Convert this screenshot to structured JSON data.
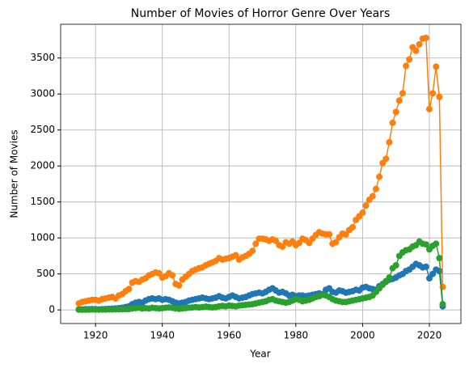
{
  "chart_data": {
    "type": "line",
    "title": "Number of Movies of Horror Genre Over Years",
    "xlabel": "Year",
    "ylabel": "Number of Movies",
    "x": [
      1915,
      1916,
      1917,
      1918,
      1919,
      1920,
      1921,
      1922,
      1923,
      1924,
      1925,
      1926,
      1927,
      1928,
      1929,
      1930,
      1931,
      1932,
      1933,
      1934,
      1935,
      1936,
      1937,
      1938,
      1939,
      1940,
      1941,
      1942,
      1943,
      1944,
      1945,
      1946,
      1947,
      1948,
      1949,
      1950,
      1951,
      1952,
      1953,
      1954,
      1955,
      1956,
      1957,
      1958,
      1959,
      1960,
      1961,
      1962,
      1963,
      1964,
      1965,
      1966,
      1967,
      1968,
      1969,
      1970,
      1971,
      1972,
      1973,
      1974,
      1975,
      1976,
      1977,
      1978,
      1979,
      1980,
      1981,
      1982,
      1983,
      1984,
      1985,
      1986,
      1987,
      1988,
      1989,
      1990,
      1991,
      1992,
      1993,
      1994,
      1995,
      1996,
      1997,
      1998,
      1999,
      2000,
      2001,
      2002,
      2003,
      2004,
      2005,
      2006,
      2007,
      2008,
      2009,
      2010,
      2011,
      2012,
      2013,
      2014,
      2015,
      2016,
      2017,
      2018,
      2019,
      2020,
      2021,
      2022,
      2023,
      2024
    ],
    "series": [
      {
        "color": "#1f77b4",
        "values": [
          5,
          8,
          10,
          10,
          12,
          10,
          8,
          10,
          12,
          15,
          18,
          20,
          25,
          30,
          40,
          50,
          80,
          100,
          110,
          100,
          130,
          150,
          160,
          150,
          160,
          140,
          150,
          140,
          120,
          100,
          90,
          100,
          110,
          130,
          140,
          150,
          160,
          170,
          160,
          150,
          160,
          170,
          190,
          170,
          160,
          180,
          200,
          180,
          160,
          170,
          180,
          200,
          220,
          230,
          240,
          230,
          250,
          280,
          300,
          270,
          240,
          250,
          230,
          200,
          210,
          190,
          200,
          200,
          190,
          200,
          210,
          220,
          230,
          220,
          280,
          300,
          250,
          240,
          270,
          260,
          240,
          250,
          260,
          280,
          270,
          310,
          320,
          300,
          290,
          280,
          330,
          360,
          390,
          420,
          430,
          450,
          480,
          500,
          540,
          560,
          600,
          640,
          620,
          590,
          600,
          440,
          500,
          560,
          540,
          50
        ]
      },
      {
        "color": "#ff7f0e",
        "values": [
          90,
          110,
          120,
          130,
          140,
          140,
          130,
          150,
          160,
          170,
          180,
          160,
          200,
          220,
          260,
          290,
          380,
          400,
          390,
          420,
          440,
          480,
          500,
          520,
          510,
          450,
          470,
          510,
          480,
          360,
          340,
          420,
          460,
          500,
          540,
          560,
          580,
          590,
          620,
          640,
          660,
          680,
          720,
          700,
          710,
          720,
          740,
          760,
          700,
          730,
          750,
          780,
          820,
          920,
          990,
          990,
          980,
          960,
          980,
          960,
          900,
          880,
          940,
          920,
          950,
          900,
          930,
          990,
          970,
          930,
          990,
          1040,
          1080,
          1060,
          1050,
          1050,
          920,
          940,
          1010,
          1060,
          1050,
          1110,
          1150,
          1250,
          1300,
          1350,
          1450,
          1530,
          1580,
          1680,
          1850,
          2040,
          2100,
          2330,
          2600,
          2750,
          2910,
          3010,
          3390,
          3480,
          3650,
          3600,
          3690,
          3770,
          3780,
          2790,
          3010,
          3380,
          2960,
          320
        ]
      },
      {
        "color": "#2ca02c",
        "values": [
          5,
          3,
          4,
          5,
          6,
          5,
          4,
          6,
          5,
          7,
          6,
          8,
          7,
          9,
          10,
          12,
          20,
          25,
          30,
          20,
          25,
          20,
          30,
          25,
          20,
          25,
          30,
          35,
          30,
          20,
          15,
          20,
          25,
          30,
          35,
          40,
          35,
          40,
          45,
          40,
          35,
          40,
          50,
          55,
          50,
          60,
          55,
          50,
          60,
          65,
          70,
          75,
          80,
          90,
          100,
          110,
          120,
          140,
          150,
          130,
          120,
          110,
          100,
          110,
          130,
          150,
          140,
          120,
          130,
          140,
          160,
          180,
          190,
          210,
          200,
          180,
          150,
          130,
          120,
          110,
          110,
          120,
          130,
          140,
          150,
          160,
          170,
          180,
          200,
          250,
          300,
          350,
          400,
          450,
          580,
          620,
          750,
          800,
          830,
          840,
          880,
          900,
          950,
          920,
          910,
          840,
          890,
          920,
          720,
          80
        ]
      }
    ],
    "xlim": [
      1909.55,
      2029.45
    ],
    "ylim": [
      -189,
      3969
    ],
    "xticks": [
      1920,
      1940,
      1960,
      1980,
      2000,
      2020
    ],
    "yticks": [
      0,
      500,
      1000,
      1500,
      2000,
      2500,
      3000,
      3500
    ],
    "grid": true
  }
}
